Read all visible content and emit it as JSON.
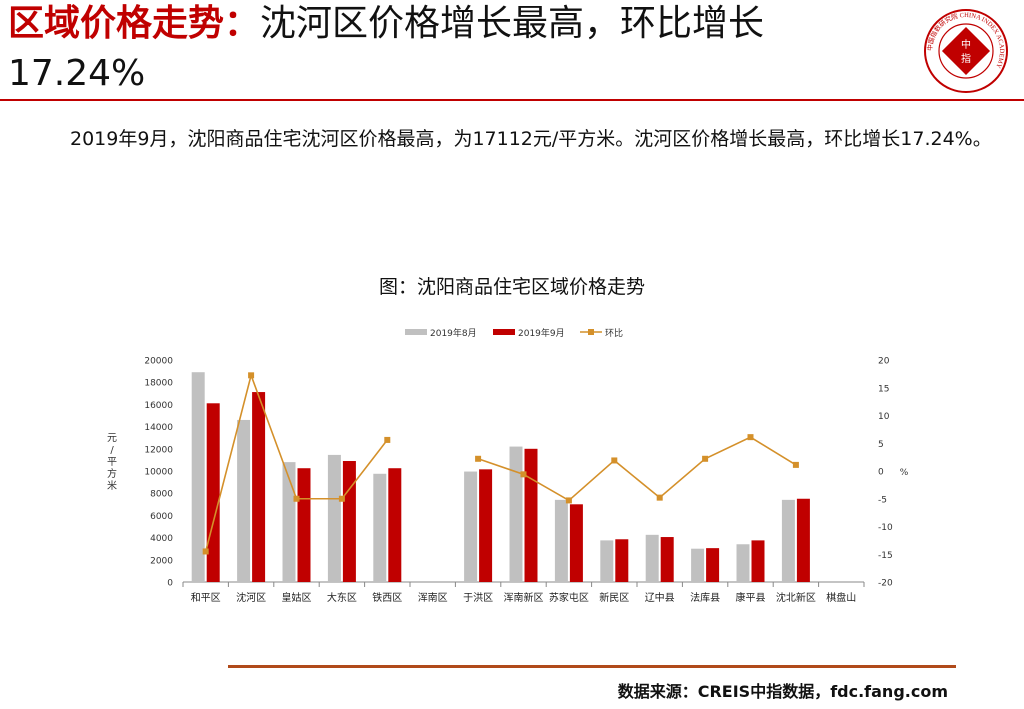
{
  "header": {
    "title_red": "区域价格走势：",
    "title_rest": "沈河区价格增长最高，环比增长",
    "title_line2": "17.24%",
    "logo": {
      "outer_text": "中国指数研究院 CHINA INDEX ACADEMY",
      "center_text_1": "中",
      "center_text_2": "指"
    }
  },
  "paragraph": "2019年9月，沈阳商品住宅沈河区价格最高，为17112元/平方米。沈河区价格增长最高，环比增长17.24%。",
  "chart_title": "图：沈阳商品住宅区域价格走势",
  "source": "数据来源：CREIS中指数据，fdc.fang.com",
  "colors": {
    "accent_red": "#c00000",
    "aug_bar": "#c0c0c0",
    "sep_bar": "#c00000",
    "mom_line": "#d4902a",
    "axis": "#888888",
    "bottom_rule": "#b04a1a"
  },
  "chart_data": {
    "type": "bar",
    "categories": [
      "和平区",
      "沈河区",
      "皇姑区",
      "大东区",
      "铁西区",
      "浑南区",
      "于洪区",
      "浑南新区",
      "苏家屯区",
      "新民区",
      "辽中县",
      "法库县",
      "康平县",
      "沈北新区",
      "棋盘山"
    ],
    "series": [
      {
        "name": "2019年8月",
        "kind": "bar",
        "axis": "left",
        "values": [
          18900,
          14600,
          10800,
          11450,
          9750,
          null,
          9950,
          12200,
          7400,
          3750,
          4250,
          3000,
          3400,
          7400,
          null
        ]
      },
      {
        "name": "2019年9月",
        "kind": "bar",
        "axis": "left",
        "values": [
          16100,
          17112,
          10250,
          10900,
          10250,
          null,
          10150,
          12000,
          7000,
          3850,
          4050,
          3050,
          3750,
          7500,
          null
        ]
      },
      {
        "name": "环比",
        "kind": "line",
        "axis": "right",
        "values": [
          -14.5,
          17.24,
          -5.0,
          -5.0,
          5.6,
          null,
          2.2,
          -0.6,
          -5.3,
          1.9,
          -4.8,
          2.2,
          6.1,
          1.1,
          null
        ]
      }
    ],
    "ylabel_left": "元/平方米",
    "ylabel_right": "%",
    "ylim_left": [
      0,
      20000
    ],
    "yticks_left": [
      "0",
      "2000",
      "4000",
      "6000",
      "8000",
      "10000",
      "12000",
      "14000",
      "16000",
      "18000",
      "20000"
    ],
    "ylim_right": [
      -20,
      20
    ],
    "yticks_right": [
      "-20",
      "-15",
      "-10",
      "-5",
      "0",
      "5",
      "10",
      "15",
      "20"
    ],
    "legend_position": "top",
    "grid": false
  }
}
